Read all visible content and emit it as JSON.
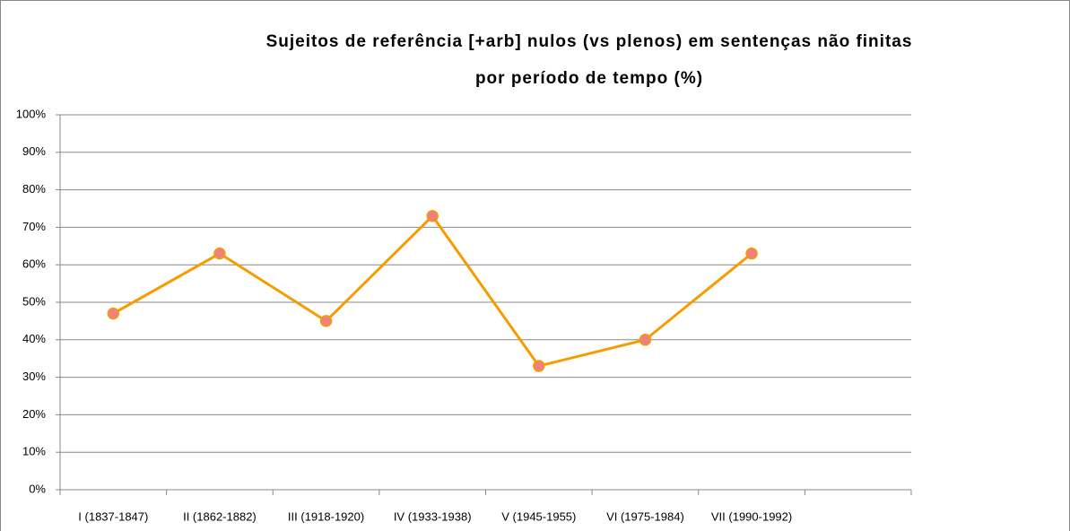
{
  "chart_data": {
    "type": "line",
    "title": [
      "Sujeitos de referência [+arb] nulos (vs plenos) em sentenças não finitas",
      "por período de tempo (%)"
    ],
    "categories": [
      "I (1837-1847)",
      "II (1862-1882)",
      "III (1918-1920)",
      "IV (1933-1938)",
      "V (1945-1955)",
      "VI (1975-1984)",
      "VII (1990-1992)",
      null
    ],
    "values": [
      47,
      63,
      45,
      73,
      33,
      40,
      63,
      null
    ],
    "color": "#f59d00",
    "marker_color": "#f08080",
    "ylim": [
      0,
      100
    ],
    "yticks": [
      {
        "value": 0,
        "label": "0%"
      },
      {
        "value": 10,
        "label": "10%"
      },
      {
        "value": 20,
        "label": "20%"
      },
      {
        "value": 30,
        "label": "30%"
      },
      {
        "value": 40,
        "label": "40%"
      },
      {
        "value": 50,
        "label": "50%"
      },
      {
        "value": 60,
        "label": "60%"
      },
      {
        "value": 70,
        "label": "70%"
      },
      {
        "value": 80,
        "label": "80%"
      },
      {
        "value": 90,
        "label": "90%"
      },
      {
        "value": 100,
        "label": "100%"
      }
    ],
    "grid": true
  }
}
